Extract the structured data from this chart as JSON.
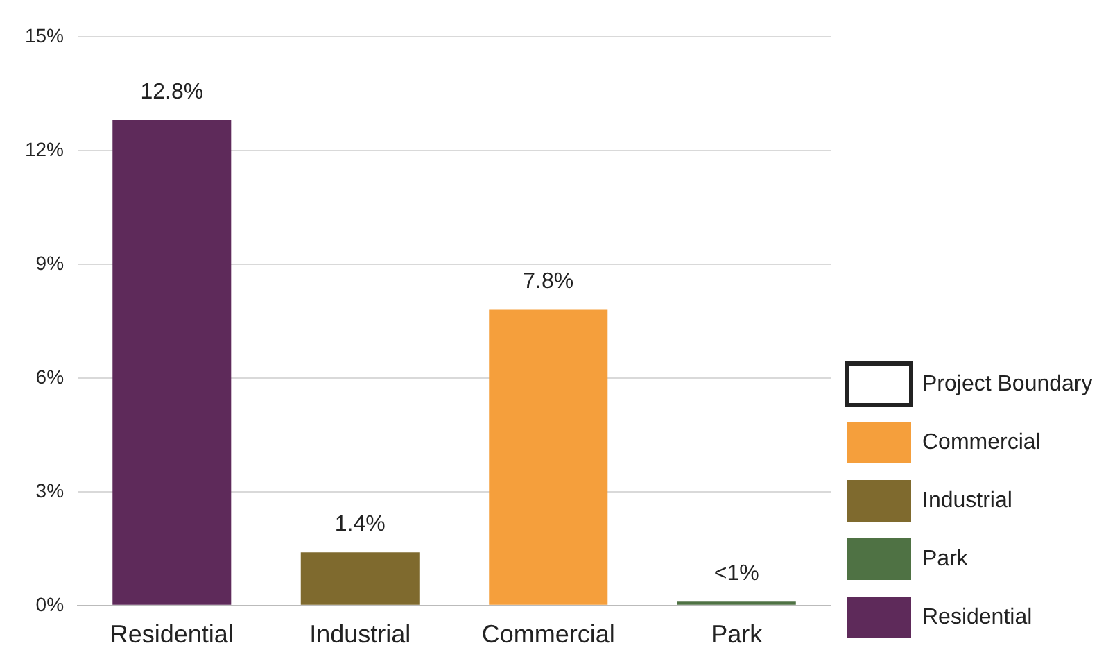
{
  "chart_data": {
    "type": "bar",
    "categories": [
      "Residential",
      "Industrial",
      "Commercial",
      "Park"
    ],
    "series": [
      {
        "name": "Project Boundary",
        "color": "#ffffff",
        "values": [
          null,
          null,
          null,
          null
        ]
      },
      {
        "name": "Commercial",
        "color": "#f59f3c",
        "values": [
          null,
          null,
          7.8,
          null
        ],
        "value_labels": [
          null,
          null,
          "7.8%",
          null
        ]
      },
      {
        "name": "Industrial",
        "color": "#7f6a2e",
        "values": [
          null,
          1.4,
          null,
          null
        ],
        "value_labels": [
          null,
          "1.4%",
          null,
          null
        ]
      },
      {
        "name": "Park",
        "color": "#4f7244",
        "values": [
          null,
          null,
          null,
          0.1
        ],
        "value_labels": [
          null,
          null,
          null,
          "<1%"
        ]
      },
      {
        "name": "Residential",
        "color": "#5e2a5a",
        "values": [
          12.8,
          null,
          null,
          null
        ],
        "value_labels": [
          "12.8%",
          null,
          null,
          null
        ]
      }
    ],
    "ylim": [
      0,
      15
    ],
    "yticks": [
      {
        "value": 0,
        "label": "0%"
      },
      {
        "value": 3,
        "label": "3%"
      },
      {
        "value": 6,
        "label": "6%"
      },
      {
        "value": 9,
        "label": "9%"
      },
      {
        "value": 12,
        "label": "12%"
      },
      {
        "value": 15,
        "label": "15%"
      }
    ],
    "grid": "y",
    "legend": "bottom right"
  }
}
